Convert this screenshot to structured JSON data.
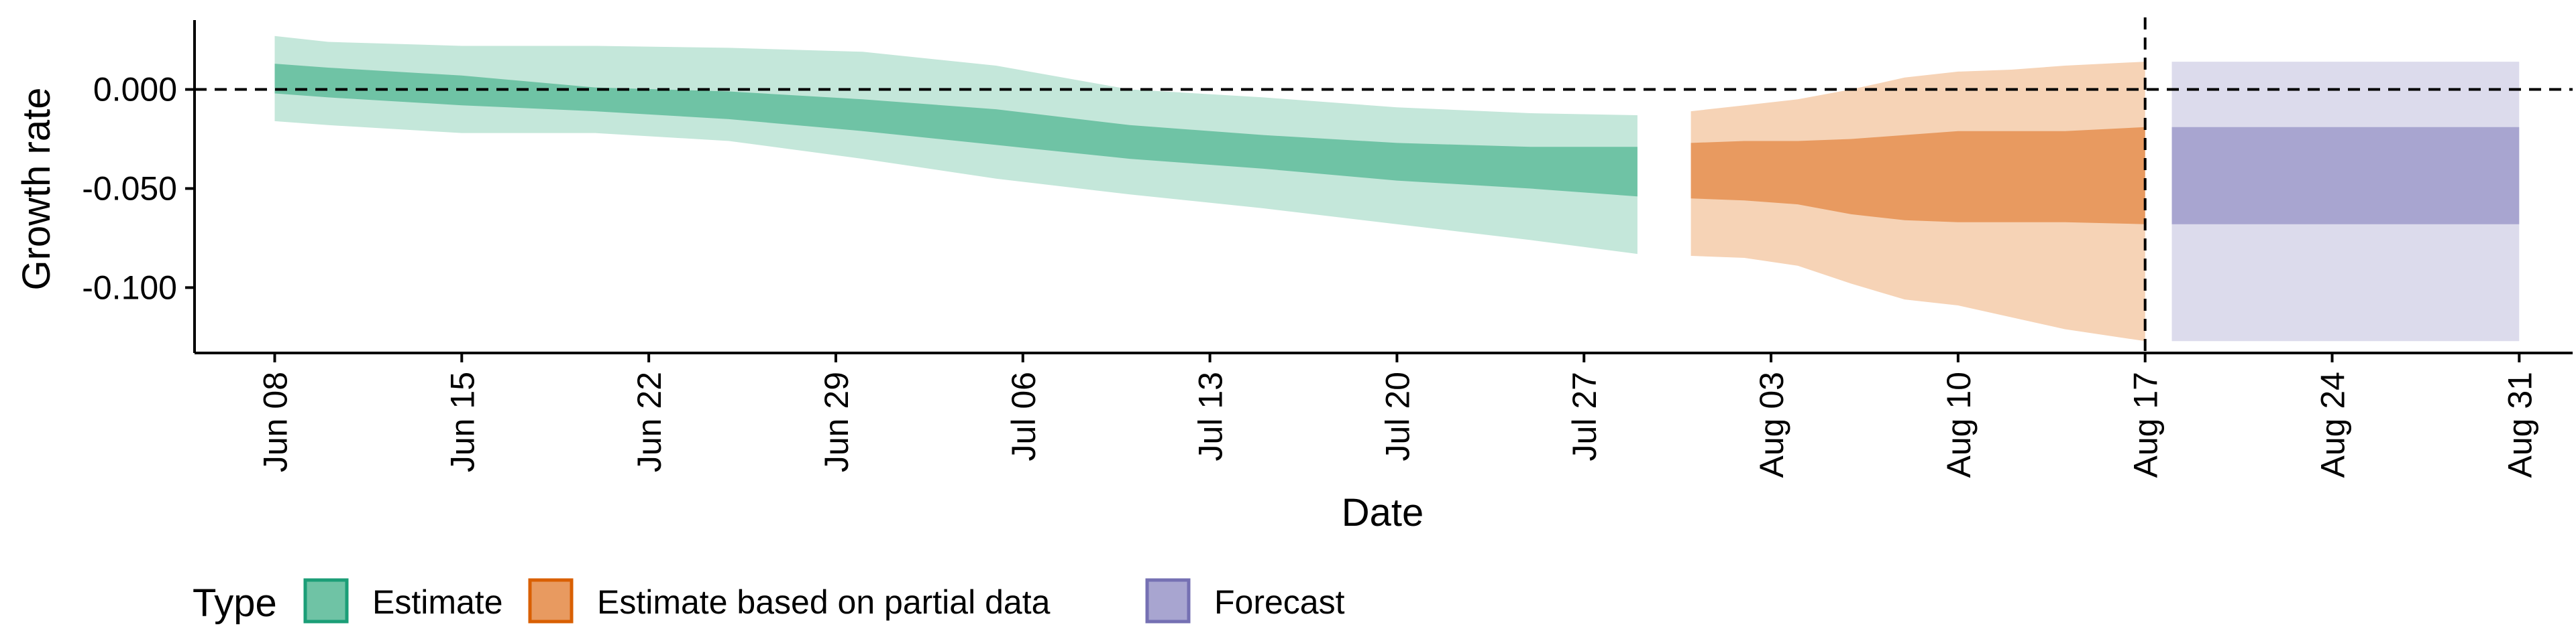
{
  "chart_data": {
    "type": "area",
    "xlabel": "Date",
    "ylabel": "Growth rate",
    "x_axis": "date",
    "xlim": [
      "2020-06-05",
      "2020-09-02"
    ],
    "ylim": [
      -0.133,
      0.035
    ],
    "x_ticks": [
      "Jun 08",
      "Jun 15",
      "Jun 22",
      "Jun 29",
      "Jul 06",
      "Jul 13",
      "Jul 20",
      "Jul 27",
      "Aug 03",
      "Aug 10",
      "Aug 17",
      "Aug 24",
      "Aug 31"
    ],
    "x_tick_dates": [
      "2020-06-08",
      "2020-06-15",
      "2020-06-22",
      "2020-06-29",
      "2020-07-06",
      "2020-07-13",
      "2020-07-20",
      "2020-07-27",
      "2020-08-03",
      "2020-08-10",
      "2020-08-17",
      "2020-08-24",
      "2020-08-31"
    ],
    "y_ticks": [
      0.0,
      -0.05,
      -0.1
    ],
    "y_tick_labels": [
      "0.000",
      "-0.050",
      "-0.100"
    ],
    "reference_lines": {
      "horizontal_y": 0,
      "vertical_date": "2020-08-17",
      "style": "dashed"
    },
    "legend": {
      "title": "Type",
      "position": "bottom-left",
      "items": [
        {
          "label": "Estimate",
          "fill": "#6fc3a5",
          "border": "#1b9e77"
        },
        {
          "label": "Estimate based on partial data",
          "fill": "#e89a60",
          "border": "#d95f02"
        },
        {
          "label": "Forecast",
          "fill": "#a8a5d0",
          "border": "#7570b3"
        }
      ]
    },
    "series": [
      {
        "name": "Estimate",
        "inner_color": "#6fc3a5",
        "outer_color": "#c4e7da",
        "x": [
          "2020-06-08",
          "2020-06-10",
          "2020-06-15",
          "2020-06-20",
          "2020-06-25",
          "2020-06-30",
          "2020-07-05",
          "2020-07-10",
          "2020-07-15",
          "2020-07-20",
          "2020-07-25",
          "2020-07-29"
        ],
        "outer_upper": [
          0.027,
          0.024,
          0.022,
          0.022,
          0.021,
          0.019,
          0.012,
          0.0,
          -0.004,
          -0.009,
          -0.012,
          -0.013
        ],
        "inner_upper": [
          0.013,
          0.011,
          0.007,
          0.001,
          -0.001,
          -0.005,
          -0.01,
          -0.018,
          -0.023,
          -0.027,
          -0.029,
          -0.029
        ],
        "inner_lower": [
          -0.002,
          -0.004,
          -0.008,
          -0.011,
          -0.015,
          -0.021,
          -0.028,
          -0.035,
          -0.04,
          -0.046,
          -0.05,
          -0.054
        ],
        "outer_lower": [
          -0.016,
          -0.018,
          -0.022,
          -0.022,
          -0.026,
          -0.035,
          -0.045,
          -0.053,
          -0.06,
          -0.068,
          -0.076,
          -0.083
        ]
      },
      {
        "name": "Estimate based on partial data",
        "inner_color": "#e89a60",
        "outer_color": "#f6d3b6",
        "x": [
          "2020-07-31",
          "2020-08-02",
          "2020-08-04",
          "2020-08-06",
          "2020-08-08",
          "2020-08-10",
          "2020-08-12",
          "2020-08-14",
          "2020-08-17"
        ],
        "outer_upper": [
          -0.011,
          -0.008,
          -0.005,
          0.0,
          0.006,
          0.009,
          0.01,
          0.012,
          0.014
        ],
        "inner_upper": [
          -0.027,
          -0.026,
          -0.026,
          -0.025,
          -0.023,
          -0.021,
          -0.021,
          -0.021,
          -0.019
        ],
        "inner_lower": [
          -0.055,
          -0.056,
          -0.058,
          -0.063,
          -0.066,
          -0.067,
          -0.067,
          -0.067,
          -0.068
        ],
        "outer_lower": [
          -0.084,
          -0.085,
          -0.089,
          -0.098,
          -0.106,
          -0.109,
          -0.115,
          -0.121,
          -0.127
        ]
      },
      {
        "name": "Forecast",
        "inner_color": "#a8a5d0",
        "outer_color": "#dcdbec",
        "x": [
          "2020-08-18",
          "2020-08-31"
        ],
        "outer_upper": [
          0.014,
          0.014
        ],
        "inner_upper": [
          -0.019,
          -0.019
        ],
        "inner_lower": [
          -0.068,
          -0.068
        ],
        "outer_lower": [
          -0.127,
          -0.127
        ]
      }
    ]
  }
}
